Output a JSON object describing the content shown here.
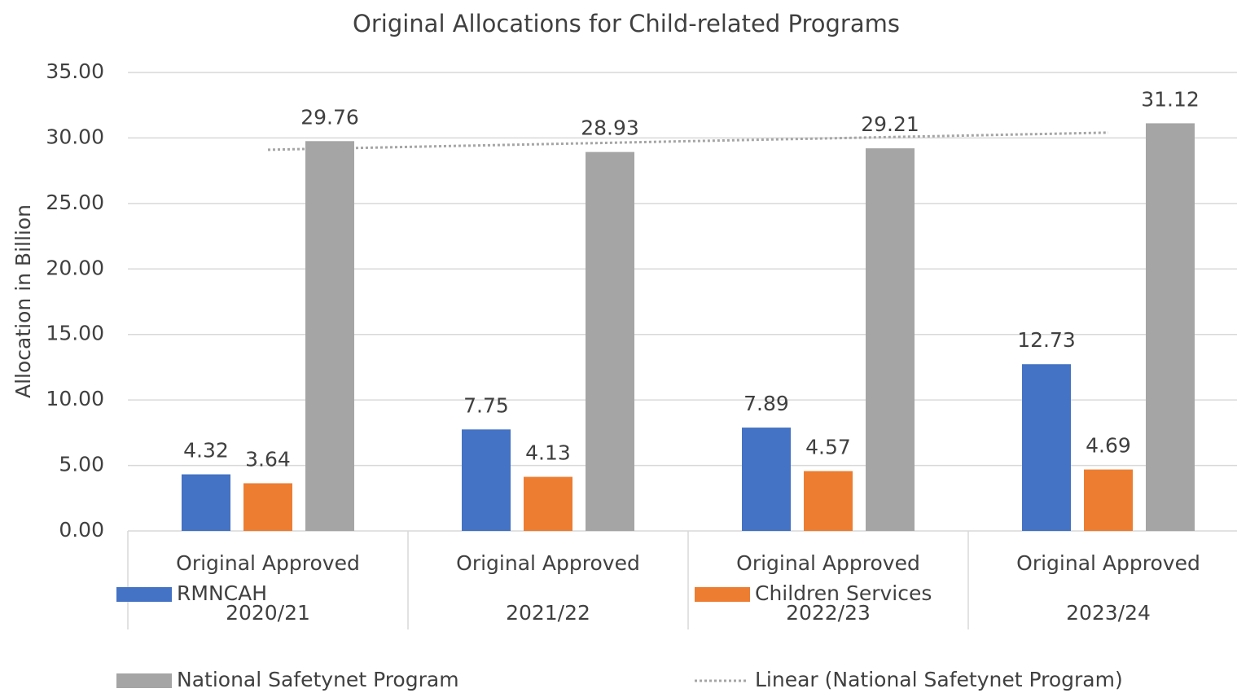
{
  "chart_data": {
    "type": "bar",
    "title": "Original Allocations for Child-related Programs",
    "y_label": "Allocation in Billion",
    "categories": [
      [
        "Original Approved",
        "2020/21"
      ],
      [
        "Original Approved",
        "2021/22"
      ],
      [
        "Original Approved",
        "2022/23"
      ],
      [
        "Original Approved",
        "2023/24"
      ]
    ],
    "series": [
      {
        "name": "RMNCAH",
        "color": "#4472c4",
        "values": [
          4.32,
          7.75,
          7.89,
          12.73
        ]
      },
      {
        "name": "Children Services",
        "color": "#ed7d31",
        "values": [
          3.64,
          4.13,
          4.57,
          4.69
        ]
      },
      {
        "name": "National Safetynet Program",
        "color": "#a5a5a5",
        "values": [
          29.76,
          28.93,
          29.21,
          31.12
        ]
      }
    ],
    "trendline": {
      "name": "Linear (National Safetynet Program)",
      "series": 2,
      "kind": "linear",
      "color": "#a5a5a5"
    },
    "ylim": [
      0,
      35
    ],
    "yticks": [
      {
        "value": 0,
        "label": "0.00"
      },
      {
        "value": 5,
        "label": "5.00"
      },
      {
        "value": 10,
        "label": "10.00"
      },
      {
        "value": 15,
        "label": "15.00"
      },
      {
        "value": 20,
        "label": "20.00"
      },
      {
        "value": 25,
        "label": "25.00"
      },
      {
        "value": 30,
        "label": "30.00"
      },
      {
        "value": 35,
        "label": "35.00"
      }
    ],
    "grid": true,
    "legend": "bottom"
  }
}
